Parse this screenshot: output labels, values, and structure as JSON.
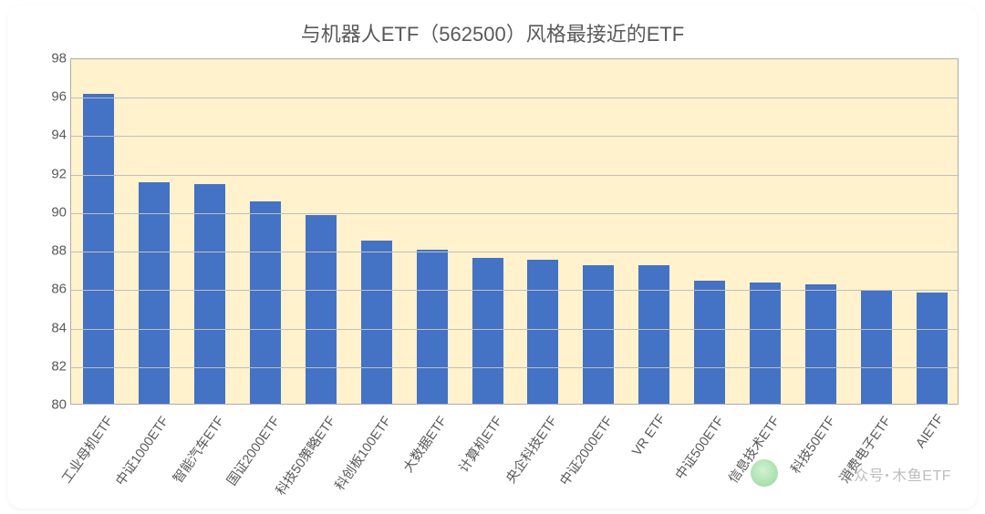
{
  "chart": {
    "type": "bar",
    "title": "与机器人ETF（562500）风格最接近的ETF",
    "title_fontsize": 22,
    "title_color": "#595959",
    "categories": [
      "工业母机ETF",
      "中证1000ETF",
      "智能汽车ETF",
      "国证2000ETF",
      "科技50策略ETF",
      "科创板100ETF",
      "大数据ETF",
      "计算机ETF",
      "央企科技ETF",
      "中证2000ETF",
      "VR ETF",
      "中证500ETF",
      "信息技术ETF",
      "科技50ETF",
      "消费电子ETF",
      "AIETF"
    ],
    "values": [
      96.1,
      91.5,
      91.4,
      90.5,
      89.8,
      88.5,
      88.0,
      87.6,
      87.5,
      87.2,
      87.2,
      86.4,
      86.3,
      86.2,
      85.9,
      85.8
    ],
    "bar_color": "#4472c4",
    "bar_width_ratio": 0.56,
    "background_color": "#ffffff",
    "plot_background_color": "#fff2cc",
    "plot_border_color": "#afabab",
    "gridline_color": "#bfbfbf",
    "ylim": [
      80,
      98
    ],
    "ytick_step": 2,
    "yticks": [
      80,
      82,
      84,
      86,
      88,
      90,
      92,
      94,
      96,
      98
    ],
    "axis_label_color": "#595959",
    "axis_label_fontsize": 15,
    "xaxis_label_fontsize": 14.5,
    "xaxis_rotation_deg": -55
  },
  "watermark": {
    "prefix": "公众号",
    "name": "木鱼ETF",
    "color": "#9a9a9a",
    "logo_color": "#6ecf75"
  }
}
